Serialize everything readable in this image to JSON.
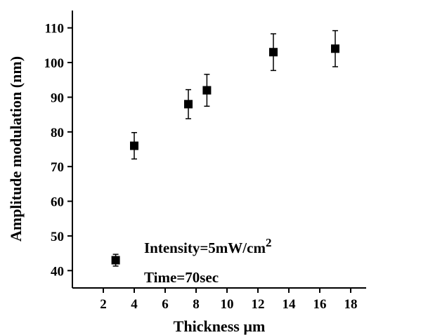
{
  "chart_data": {
    "type": "scatter",
    "xlabel": "Thickness µm",
    "ylabel": "Amplitude modulation (nm)",
    "annotations": [
      {
        "text": "Intensity=5mW/cm",
        "sup": "2"
      },
      {
        "text": "Time=70sec"
      }
    ],
    "series": [
      {
        "color": "#000000",
        "x": [
          2.8,
          4,
          7.5,
          8.7,
          13,
          17
        ],
        "values": [
          43,
          76,
          88,
          92,
          103,
          104
        ],
        "errors": [
          1.7,
          3.8,
          4.2,
          4.6,
          5.3,
          5.2
        ]
      }
    ],
    "xlim": [
      0,
      19
    ],
    "xticks": [
      2,
      4,
      6,
      8,
      10,
      12,
      14,
      16,
      18
    ],
    "ylim": [
      35,
      115
    ],
    "yticks": [
      40,
      50,
      60,
      70,
      80,
      90,
      100,
      110
    ]
  }
}
